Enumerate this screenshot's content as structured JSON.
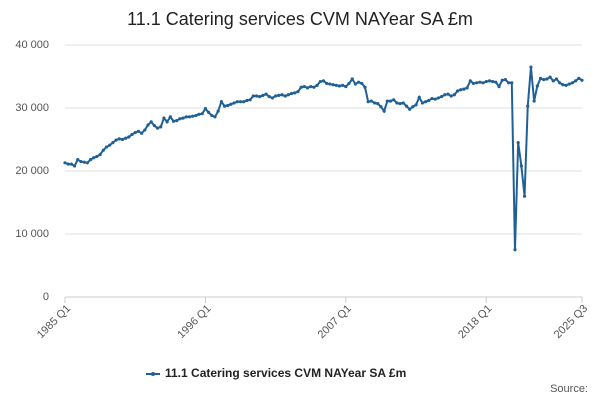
{
  "chart_data": {
    "type": "line",
    "title": "11.1 Catering services CVM NAYear SA £m",
    "source": "Source:",
    "categories": [
      "1985 Q1",
      null,
      null,
      null,
      null,
      null,
      null,
      null,
      null,
      null,
      null,
      null,
      null,
      null,
      null,
      null,
      null,
      null,
      null,
      null,
      null,
      null,
      null,
      null,
      null,
      null,
      null,
      null,
      null,
      null,
      null,
      null,
      null,
      null,
      null,
      null,
      null,
      null,
      null,
      null,
      null,
      null,
      null,
      null,
      "1996 Q1",
      null,
      null,
      null,
      null,
      null,
      null,
      null,
      null,
      null,
      null,
      null,
      null,
      null,
      null,
      null,
      null,
      null,
      null,
      null,
      null,
      null,
      null,
      null,
      null,
      null,
      null,
      null,
      null,
      null,
      null,
      null,
      null,
      null,
      null,
      null,
      null,
      null,
      null,
      null,
      null,
      null,
      null,
      null,
      "2007 Q1",
      null,
      null,
      null,
      null,
      null,
      null,
      null,
      null,
      null,
      null,
      null,
      null,
      null,
      null,
      null,
      null,
      null,
      null,
      null,
      null,
      null,
      null,
      null,
      null,
      null,
      null,
      null,
      null,
      null,
      null,
      null,
      null,
      null,
      null,
      null,
      null,
      null,
      null,
      null,
      null,
      null,
      null,
      null,
      "2018 Q1",
      null,
      null,
      null,
      null,
      null,
      null,
      null,
      null,
      null,
      null,
      null,
      null,
      null,
      null,
      null,
      null,
      null,
      null,
      null,
      null,
      null,
      null,
      null,
      null,
      null,
      null,
      null,
      null,
      null,
      "2025 Q3"
    ],
    "series": [
      {
        "name": "11.1 Catering services CVM NAYear SA £m",
        "color": "#206095",
        "values": [
          21300,
          21100,
          21100,
          20800,
          21800,
          21500,
          21400,
          21300,
          21800,
          22100,
          22300,
          22600,
          23300,
          23800,
          24100,
          24500,
          24900,
          25100,
          25000,
          25200,
          25400,
          25800,
          26100,
          26300,
          26000,
          26500,
          27300,
          27800,
          27200,
          26800,
          27000,
          28400,
          27800,
          28600,
          27900,
          28000,
          28300,
          28400,
          28600,
          28600,
          28700,
          28800,
          29000,
          29100,
          29900,
          29300,
          28800,
          28600,
          29500,
          31000,
          30300,
          30400,
          30600,
          30800,
          31000,
          31000,
          31000,
          31200,
          31300,
          31900,
          31900,
          31800,
          32000,
          32200,
          31800,
          31600,
          31900,
          32000,
          32100,
          31900,
          32100,
          32300,
          32400,
          32600,
          33300,
          33400,
          33200,
          33400,
          33300,
          33600,
          34200,
          34300,
          33900,
          33800,
          33700,
          33600,
          33500,
          33600,
          33400,
          33900,
          34600,
          33800,
          34100,
          33900,
          33300,
          31000,
          31100,
          30800,
          30700,
          30200,
          29500,
          31100,
          31100,
          31300,
          30800,
          30700,
          30800,
          30300,
          29800,
          30200,
          30500,
          31700,
          30800,
          31000,
          31200,
          31500,
          31400,
          31600,
          31800,
          32100,
          32200,
          31900,
          32100,
          32700,
          32900,
          33000,
          33200,
          34300,
          33900,
          34000,
          34100,
          34000,
          34200,
          34300,
          34200,
          34100,
          33400,
          34400,
          34500,
          34000,
          34000,
          7500,
          24500,
          20800,
          16000,
          30300,
          36500,
          31100,
          33500,
          34700,
          34500,
          34600,
          34900,
          34300,
          34600,
          34000,
          33700,
          33600,
          33800,
          34000,
          34300,
          34700,
          34400
        ]
      }
    ],
    "ylim": [
      0,
      40000
    ],
    "yticks": [
      0,
      {
        "value": 10000,
        "label": "10 000"
      },
      {
        "value": 20000,
        "label": "20 000"
      },
      {
        "value": 30000,
        "label": "30 000"
      },
      {
        "value": 40000,
        "label": "40 000"
      }
    ],
    "grid": true
  }
}
